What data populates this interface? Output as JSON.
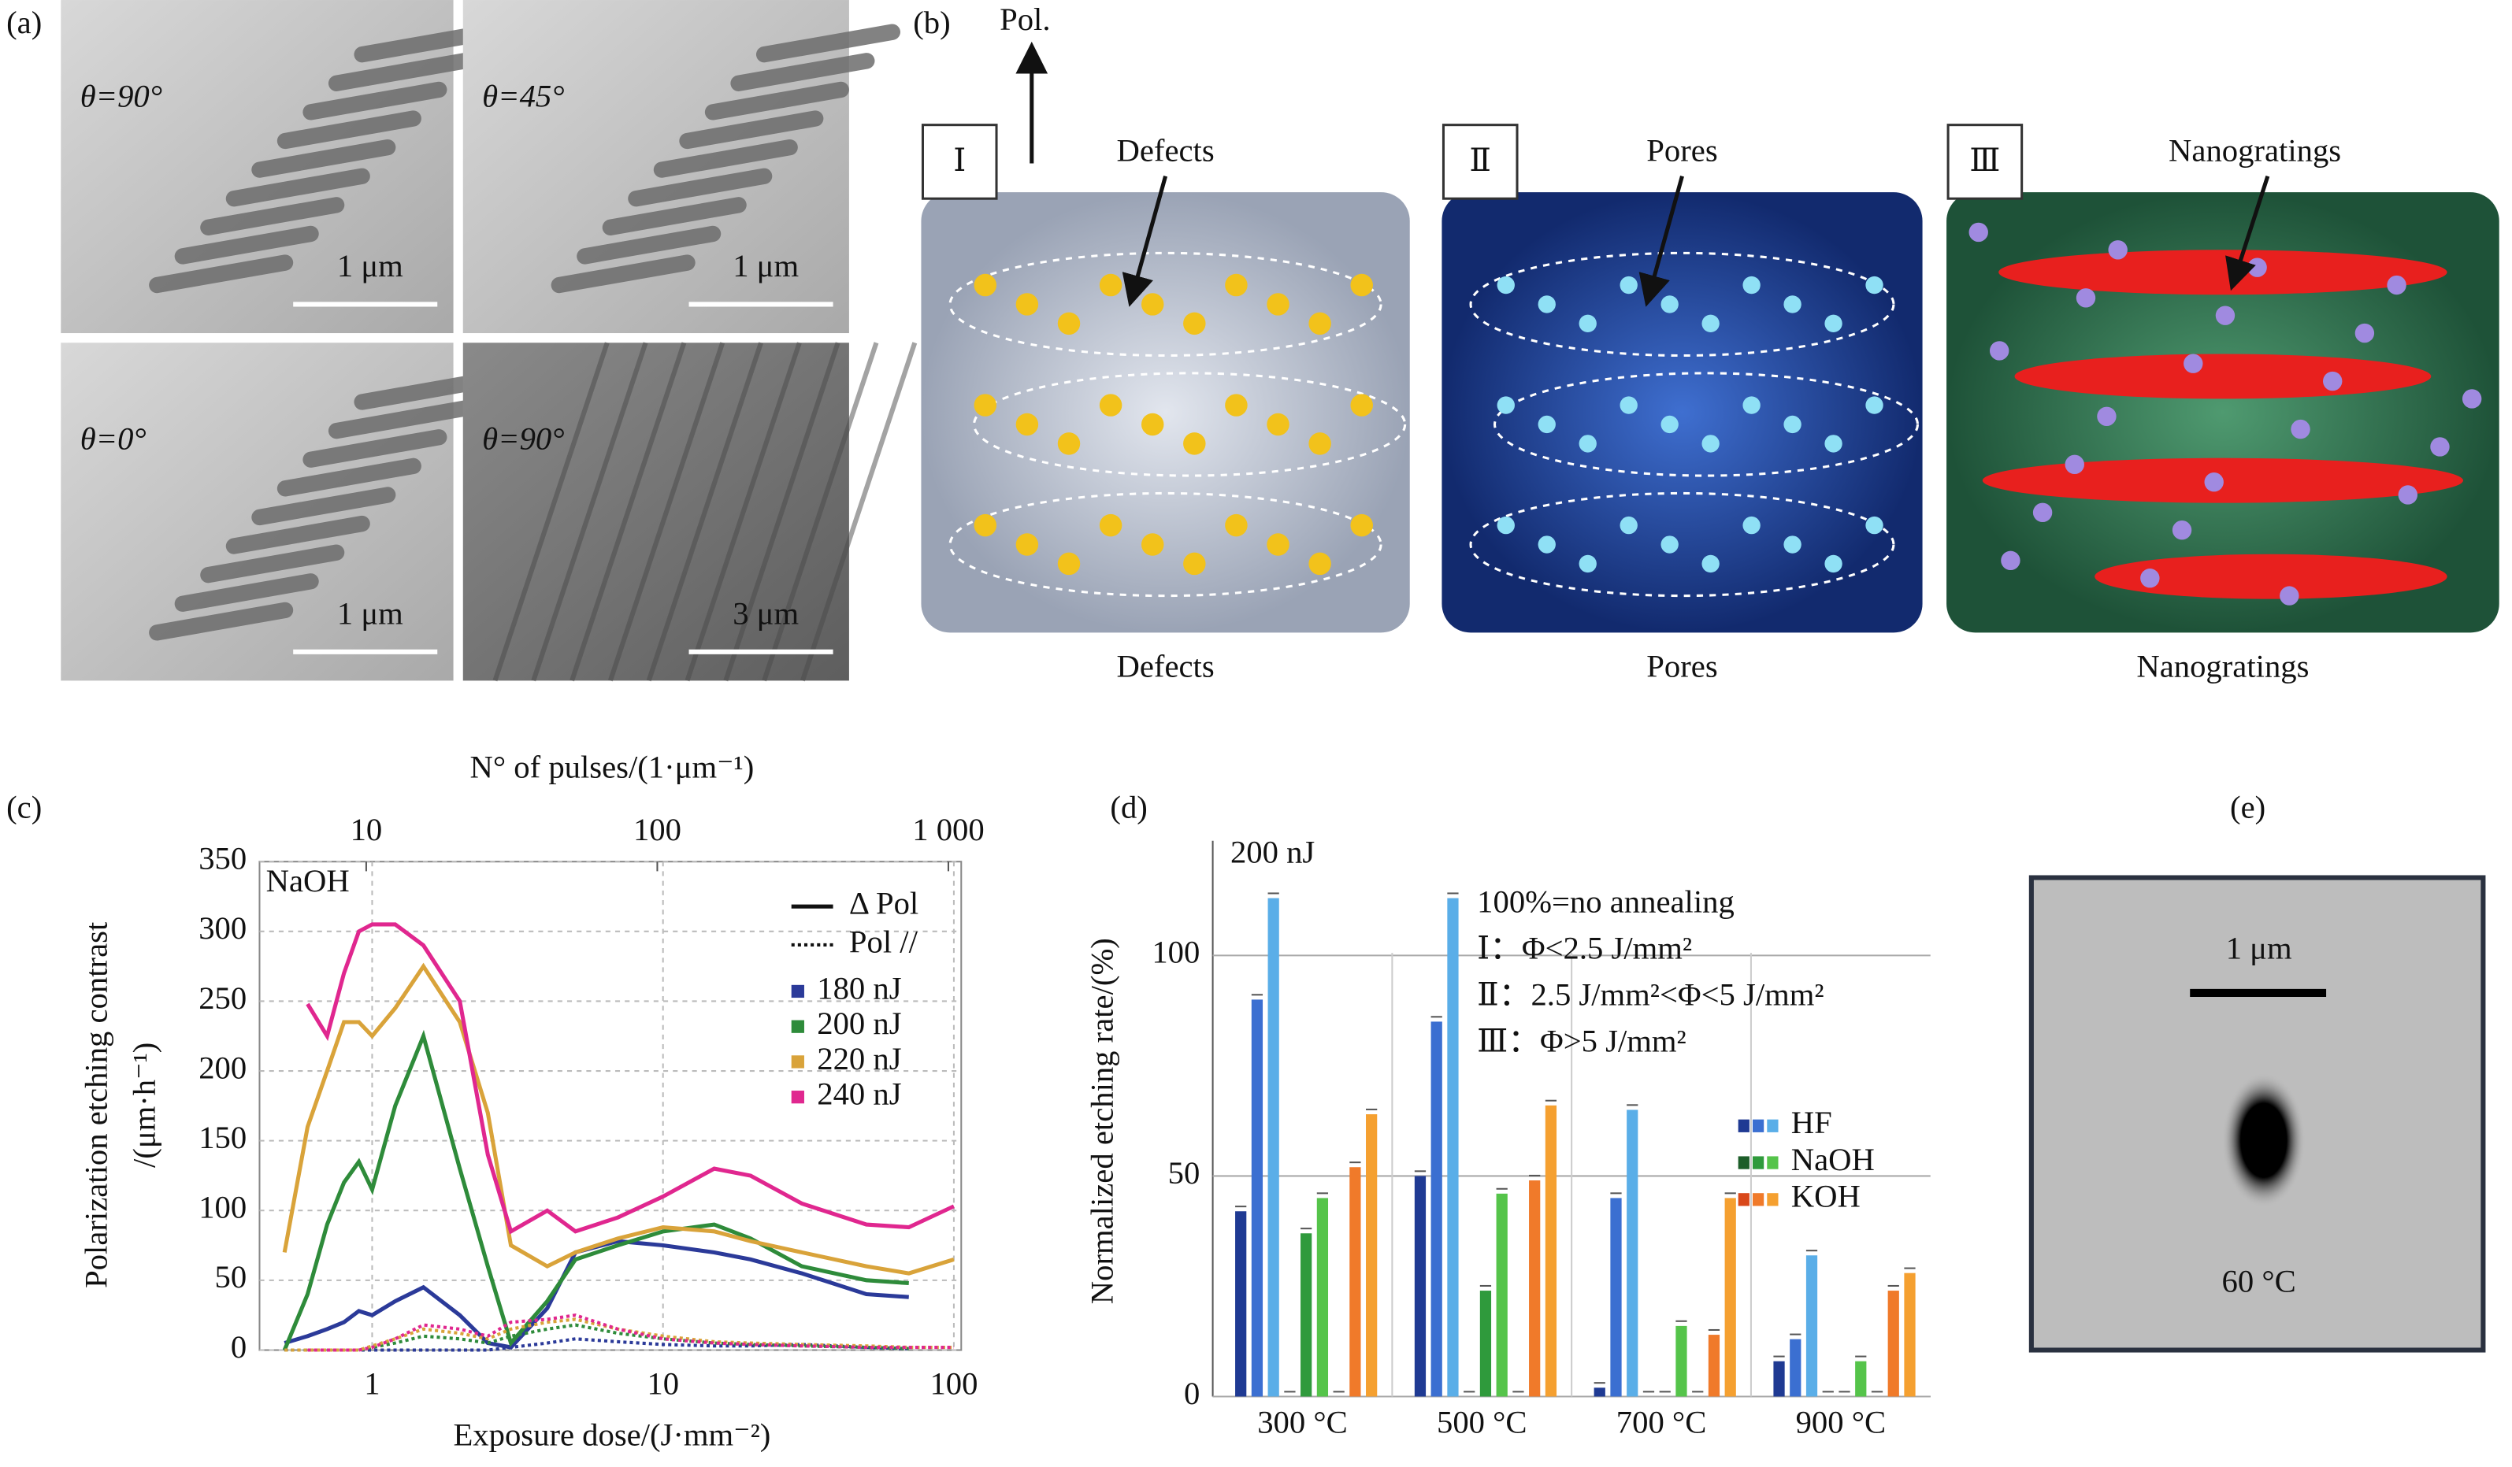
{
  "panels": {
    "a": {
      "label": "(a)",
      "tiles": [
        {
          "angle": "θ=90°",
          "scale": "1 μm"
        },
        {
          "angle": "θ=45°",
          "scale": "1 μm"
        },
        {
          "angle": "θ=0°",
          "scale": "1 μm"
        },
        {
          "angle": "θ=90°",
          "scale": "3 μm"
        }
      ]
    },
    "b": {
      "label": "(b)",
      "polarization": "Pol.",
      "stages": [
        {
          "numeral": "Ⅰ",
          "label": "Defects",
          "caption": "Defects"
        },
        {
          "numeral": "Ⅱ",
          "label": "Pores",
          "caption": "Pores"
        },
        {
          "numeral": "Ⅲ",
          "label": "Nanogratings",
          "caption": "Nanogratings"
        }
      ]
    },
    "e": {
      "label": "(e)",
      "scale": "1 μm",
      "temperature": "60 °C"
    }
  },
  "chart_data": [
    {
      "type": "line",
      "label": "(c)",
      "xscale": "log",
      "x2label": "N° of pulses/(1·μm⁻¹)",
      "x2lim": [
        4.3,
        1107
      ],
      "x2ticks": [
        10,
        100,
        {
          "value": 1000,
          "label": "1 000"
        }
      ],
      "xlabel": "Exposure dose/(J·mm⁻²)",
      "ylabel": [
        "Polarization etching contrast",
        "/(μm·h⁻¹)"
      ],
      "annotation": "NaOH",
      "line_styles": [
        "Δ Pol",
        "Pol //"
      ],
      "x": [
        0.5,
        0.6,
        0.7,
        0.8,
        0.9,
        1,
        1.2,
        1.5,
        2,
        2.5,
        3,
        4,
        5,
        7,
        10,
        15,
        20,
        30,
        50,
        70,
        100
      ],
      "xlim": [
        0.41,
        106
      ],
      "xticks": [
        1,
        10,
        100
      ],
      "ylim": [
        0,
        350
      ],
      "yticks": [
        0,
        50,
        100,
        150,
        200,
        250,
        300,
        350
      ],
      "grid": true,
      "series": [
        {
          "name": "180 nJ",
          "color": "#2b3a99",
          "values": [
            5,
            10,
            15,
            20,
            28,
            25,
            35,
            45,
            25,
            5,
            2,
            30,
            70,
            78,
            75,
            70,
            65,
            55,
            40,
            38,
            null
          ],
          "values_pol": [
            0,
            0,
            0,
            0,
            0,
            0,
            0,
            0,
            0,
            0,
            2,
            5,
            8,
            6,
            4,
            3,
            3,
            4,
            2,
            1,
            null
          ]
        },
        {
          "name": "200 nJ",
          "color": "#2e8b3a",
          "values": [
            0,
            40,
            90,
            120,
            135,
            115,
            175,
            225,
            130,
            60,
            5,
            35,
            65,
            75,
            85,
            90,
            80,
            60,
            50,
            48,
            null
          ],
          "values_pol": [
            0,
            0,
            0,
            0,
            0,
            2,
            5,
            10,
            8,
            5,
            10,
            15,
            18,
            12,
            8,
            5,
            4,
            3,
            2,
            1,
            null
          ]
        },
        {
          "name": "220 nJ",
          "color": "#d9a33a",
          "values": [
            70,
            160,
            200,
            235,
            235,
            225,
            245,
            275,
            235,
            170,
            75,
            60,
            70,
            80,
            88,
            85,
            78,
            70,
            60,
            55,
            65
          ],
          "values_pol": [
            0,
            0,
            0,
            0,
            0,
            3,
            8,
            15,
            12,
            8,
            15,
            20,
            22,
            15,
            10,
            6,
            5,
            4,
            3,
            2,
            2
          ]
        },
        {
          "name": "240 nJ",
          "color": "#e0278f",
          "values": [
            null,
            248,
            225,
            270,
            300,
            305,
            305,
            290,
            250,
            140,
            85,
            100,
            85,
            95,
            110,
            130,
            125,
            105,
            90,
            88,
            103
          ],
          "values_pol": [
            null,
            0,
            0,
            0,
            0,
            2,
            8,
            18,
            15,
            10,
            20,
            22,
            25,
            15,
            8,
            5,
            4,
            3,
            2,
            2,
            2
          ]
        }
      ]
    },
    {
      "type": "grouped-bar",
      "label": "(d)",
      "annotation": "200 nJ",
      "notes": [
        "100%=no annealing",
        "Ⅰ：Φ<2.5 J/mm²",
        "Ⅱ：2.5 J/mm²<Φ<5 J/mm²",
        "Ⅲ：Φ>5 J/mm²"
      ],
      "ylabel": "Normalized etching rate/(%)",
      "categories": [
        "300 °C",
        "500 °C",
        "700 °C",
        "900 °C"
      ],
      "ylim": [
        0,
        126
      ],
      "yticks": [
        0,
        50,
        100
      ],
      "grid": true,
      "series": [
        {
          "name": "HF",
          "colors": [
            "#1f3a93",
            "#3b6fd1",
            "#5aaee8"
          ],
          "values": [
            [
              42,
              90,
              113
            ],
            [
              50,
              85,
              113
            ],
            [
              2,
              45,
              65
            ],
            [
              8,
              13,
              32
            ]
          ]
        },
        {
          "name": "NaOH",
          "colors": [
            "#1d5e2a",
            "#2f9a3c",
            "#55c44a"
          ],
          "values": [
            [
              0,
              37,
              45
            ],
            [
              0,
              24,
              46
            ],
            [
              0,
              0,
              16
            ],
            [
              0,
              0,
              8
            ]
          ]
        },
        {
          "name": "KOH",
          "colors": [
            "#d9481a",
            "#f07a2a",
            "#f5a030"
          ],
          "values": [
            [
              0,
              52,
              64
            ],
            [
              0,
              49,
              66
            ],
            [
              0,
              14,
              45
            ],
            [
              0,
              24,
              28
            ]
          ]
        }
      ]
    }
  ]
}
